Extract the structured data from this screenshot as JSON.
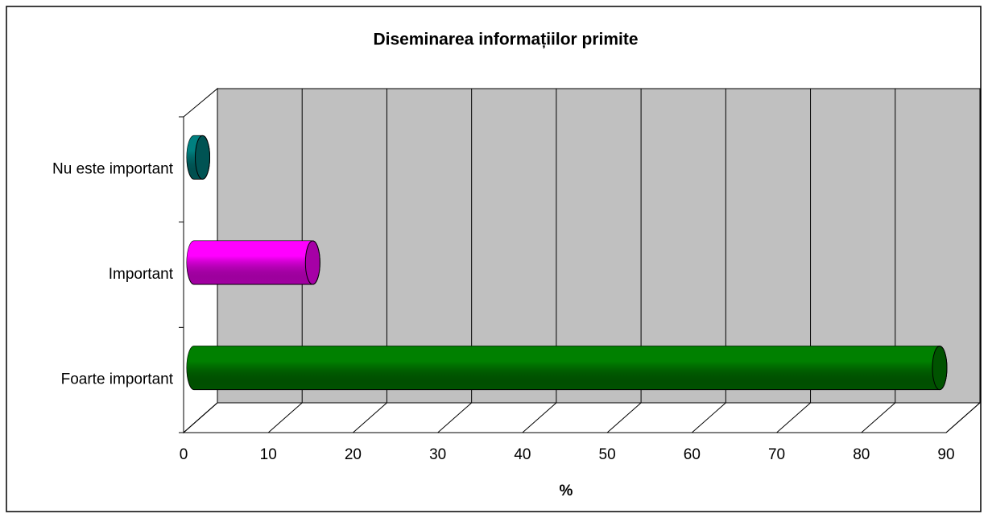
{
  "chart_data": {
    "type": "bar3d_horizontal",
    "title": "Diseminarea informațiilor primite",
    "x_label": "%",
    "categories": [
      "Foarte important",
      "Important",
      "Nu este important"
    ],
    "values": [
      88,
      14,
      1
    ],
    "colors": [
      "#008000",
      "#ff00ff",
      "#008080"
    ],
    "xlim": [
      0,
      90
    ],
    "xticks": [
      0,
      10,
      20,
      30,
      40,
      50,
      60,
      70,
      80,
      90
    ],
    "grid": true
  }
}
